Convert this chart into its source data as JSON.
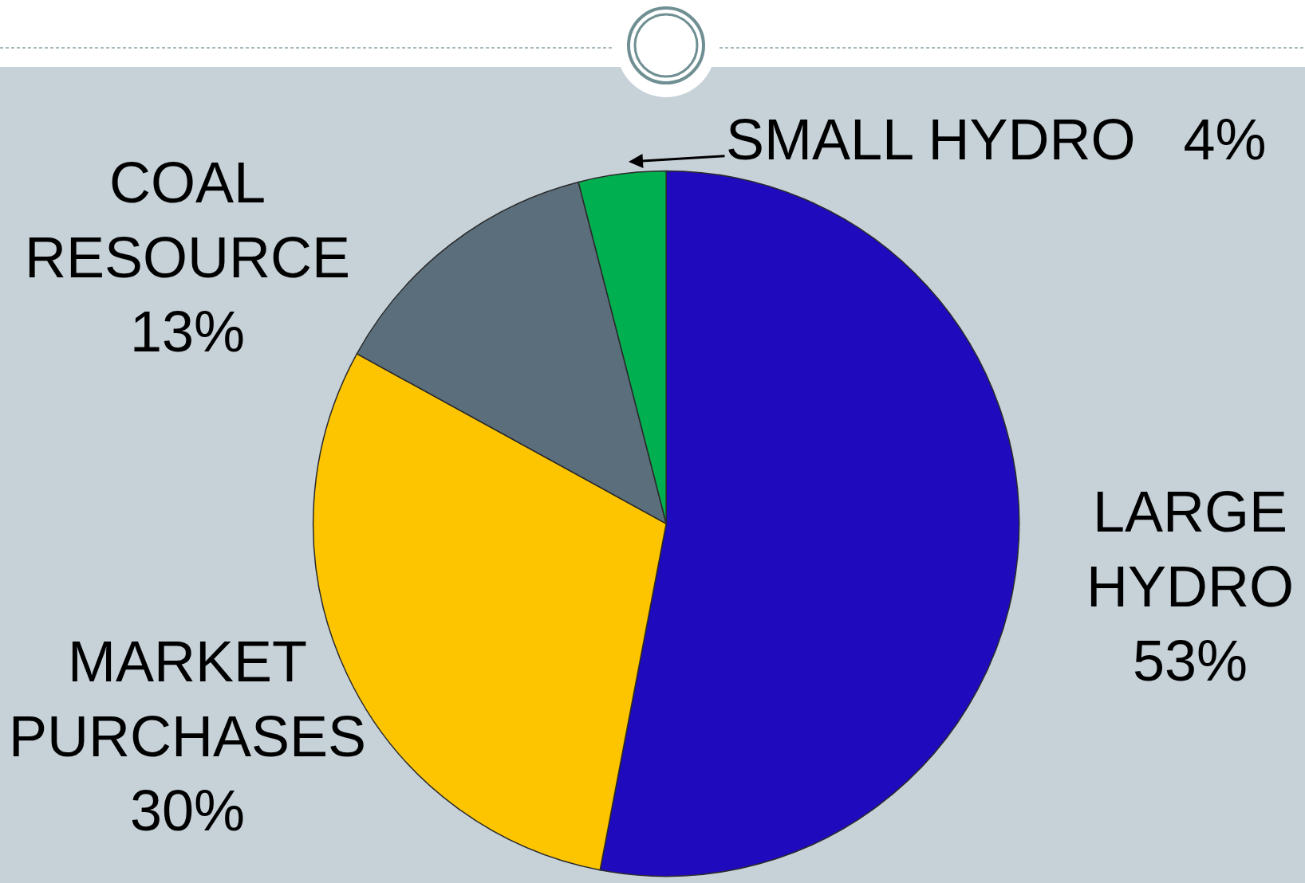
{
  "chart_data": {
    "type": "pie",
    "categories": [
      "LARGE HYDRO",
      "MARKET PURCHASES",
      "COAL RESOURCE",
      "SMALL HYDRO"
    ],
    "values": [
      53,
      30,
      13,
      4
    ],
    "colors": [
      "#1f0bbd",
      "#fdc500",
      "#5a6e7c",
      "#00b050"
    ],
    "value_labels": [
      "53%",
      "30%",
      "13%",
      "4%"
    ]
  }
}
